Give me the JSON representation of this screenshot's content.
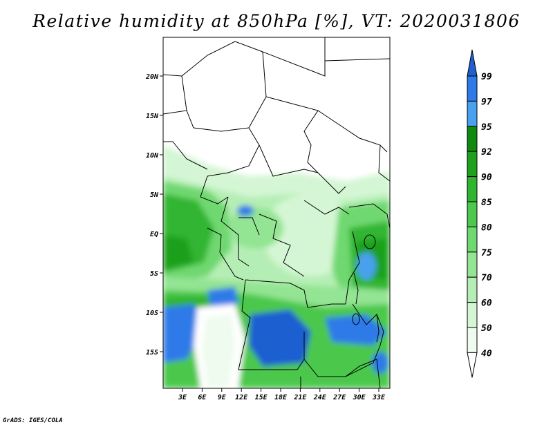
{
  "title": "Relative humidity at 850hPa [%], VT: 2020031806",
  "credit": "GrADS: IGES/COLA",
  "map": {
    "lon_range": [
      0,
      35
    ],
    "lat_range": [
      -19,
      25
    ],
    "lat_ticks": [
      "20N",
      "15N",
      "10N",
      "5N",
      "EQ",
      "5S",
      "10S",
      "15S"
    ],
    "lon_ticks": [
      "3E",
      "6E",
      "9E",
      "12E",
      "15E",
      "18E",
      "21E",
      "24E",
      "27E",
      "30E",
      "33E"
    ]
  },
  "colorbar": {
    "levels": [
      "99",
      "97",
      "95",
      "92",
      "90",
      "85",
      "80",
      "75",
      "70",
      "60",
      "50",
      "40"
    ],
    "colors": [
      "#1f5fd0",
      "#2d7ae8",
      "#4aa0f0",
      "#0f8a0f",
      "#1fa01f",
      "#30b530",
      "#4cc84c",
      "#6fd86f",
      "#93e493",
      "#b5eeb5",
      "#d4f6d4",
      "#eefbee",
      "#ffffff"
    ]
  }
}
